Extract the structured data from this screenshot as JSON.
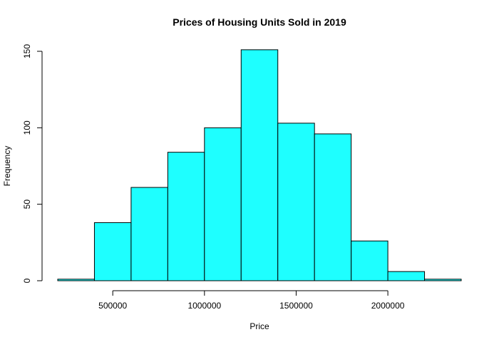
{
  "chart_data": {
    "type": "bar",
    "title": "Prices of Housing Units Sold in 2019",
    "xlabel": "Price",
    "ylabel": "Frequency",
    "bins": [
      {
        "start": 200000,
        "end": 400000,
        "count": 1
      },
      {
        "start": 400000,
        "end": 600000,
        "count": 38
      },
      {
        "start": 600000,
        "end": 800000,
        "count": 61
      },
      {
        "start": 800000,
        "end": 1000000,
        "count": 84
      },
      {
        "start": 1000000,
        "end": 1200000,
        "count": 100
      },
      {
        "start": 1200000,
        "end": 1400000,
        "count": 151
      },
      {
        "start": 1400000,
        "end": 1600000,
        "count": 103
      },
      {
        "start": 1600000,
        "end": 1800000,
        "count": 96
      },
      {
        "start": 1800000,
        "end": 2000000,
        "count": 26
      },
      {
        "start": 2000000,
        "end": 2200000,
        "count": 6
      },
      {
        "start": 2200000,
        "end": 2400000,
        "count": 1
      }
    ],
    "x_ticks": [
      500000,
      1000000,
      1500000,
      2000000
    ],
    "x_tick_labels": [
      "500000",
      "1000000",
      "1500000",
      "2000000"
    ],
    "y_ticks": [
      0,
      50,
      100,
      150
    ],
    "y_tick_labels": [
      "0",
      "50",
      "100",
      "150"
    ],
    "xlim": [
      200000,
      2400000
    ],
    "ylim": [
      0,
      150
    ],
    "grid": false,
    "legend": "none",
    "bar_fill": "#1EFFFF",
    "bar_stroke": "#000000"
  }
}
